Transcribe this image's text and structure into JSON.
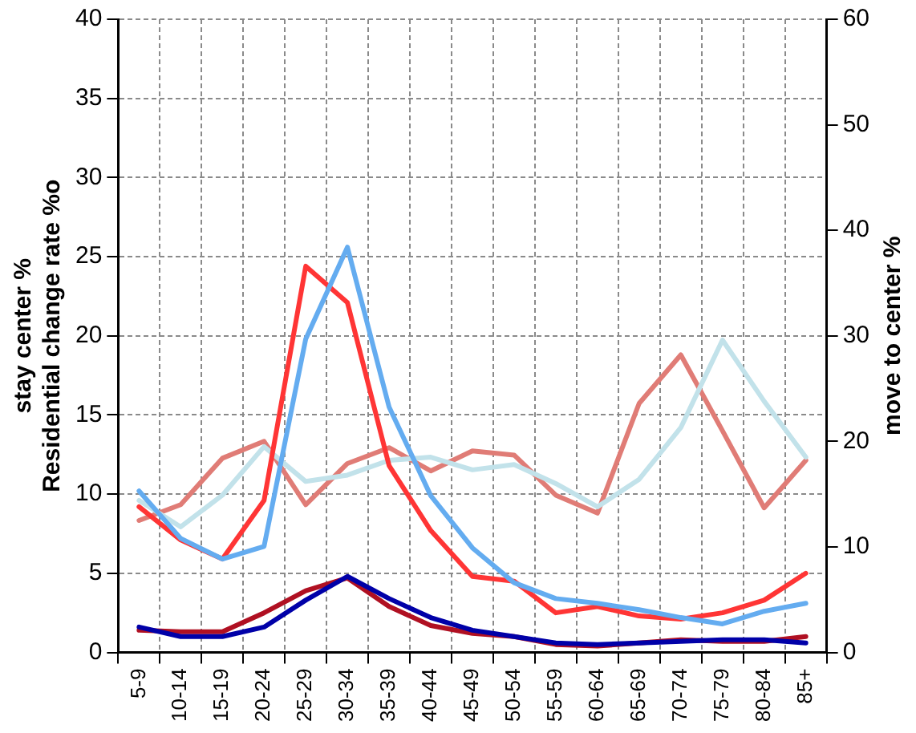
{
  "chart_data": {
    "type": "line",
    "categories": [
      "5-9",
      "10-14",
      "15-19",
      "20-24",
      "25-29",
      "30-34",
      "35-39",
      "40-44",
      "45-49",
      "50-54",
      "55-59",
      "60-64",
      "65-69",
      "70-74",
      "75-79",
      "80-84",
      "85+"
    ],
    "series": [
      {
        "color": "#64acf0",
        "values": [
          10.2,
          7.2,
          5.9,
          6.7,
          19.8,
          25.6,
          15.5,
          9.9,
          6.6,
          4.4,
          3.4,
          3.1,
          2.7,
          2.2,
          1.8,
          2.6,
          3.1
        ]
      },
      {
        "color": "#ff3535",
        "values": [
          9.2,
          7.1,
          5.9,
          9.6,
          24.4,
          22.1,
          11.8,
          7.7,
          4.8,
          4.5,
          2.5,
          2.9,
          2.3,
          2.1,
          2.5,
          3.3,
          5.0
        ]
      },
      {
        "color": "#c2e2ea",
        "axis": "y2",
        "values": [
          14.4,
          11.9,
          14.9,
          19.5,
          16.2,
          16.8,
          18.2,
          18.5,
          17.3,
          17.8,
          16.0,
          13.8,
          16.4,
          21.3,
          29.6,
          23.8,
          18.5
        ]
      },
      {
        "color": "#e07c76",
        "axis": "y2",
        "values": [
          12.5,
          14.0,
          18.4,
          20.0,
          14.0,
          17.9,
          19.4,
          17.2,
          19.1,
          18.7,
          14.9,
          13.2,
          23.6,
          28.2,
          21.0,
          13.7,
          18.2
        ]
      },
      {
        "color": "#0000a8",
        "values": [
          1.6,
          1.0,
          1.0,
          1.6,
          3.3,
          4.8,
          3.4,
          2.2,
          1.4,
          1.0,
          0.6,
          0.5,
          0.6,
          0.7,
          0.8,
          0.8,
          0.6
        ]
      },
      {
        "color": "#b01022",
        "values": [
          1.4,
          1.3,
          1.3,
          2.5,
          3.9,
          4.7,
          2.9,
          1.7,
          1.2,
          1.0,
          0.5,
          0.4,
          0.6,
          0.8,
          0.7,
          0.7,
          1.0
        ]
      }
    ],
    "ylabel": "stay center %\nResidential change rate %o",
    "y2label": "move to center %",
    "ylim": [
      0,
      40
    ],
    "yticks": [
      0,
      5,
      10,
      15,
      20,
      25,
      30,
      35,
      40
    ],
    "y2lim": [
      0,
      60
    ],
    "y2ticks": [
      0,
      10,
      20,
      30,
      40,
      50,
      60
    ],
    "grid": true,
    "legend": false
  }
}
